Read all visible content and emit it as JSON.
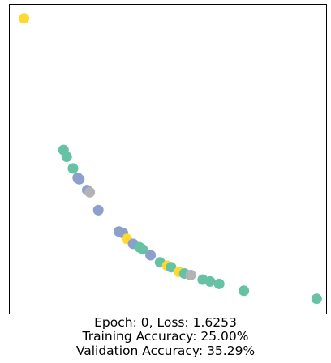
{
  "chart_data": {
    "type": "scatter",
    "title": "",
    "xlabel": "",
    "ylabel": "",
    "xlim": [
      0,
      100
    ],
    "ylim": [
      0,
      100
    ],
    "axis_ticks": false,
    "grid": false,
    "class_colors": {
      "0": "#66c2a5",
      "1": "#8da0cb",
      "2": "#ffd92f",
      "3": "#b3b3b3"
    },
    "points": [
      {
        "x": 4.5,
        "y": 95.6,
        "cls": 2
      },
      {
        "x": 17.0,
        "y": 53.0,
        "cls": 0
      },
      {
        "x": 18.0,
        "y": 50.8,
        "cls": 0
      },
      {
        "x": 20.0,
        "y": 47.0,
        "cls": 0
      },
      {
        "x": 21.5,
        "y": 44.0,
        "cls": 1
      },
      {
        "x": 22.0,
        "y": 43.5,
        "cls": 1
      },
      {
        "x": 24.5,
        "y": 40.0,
        "cls": 1
      },
      {
        "x": 25.3,
        "y": 39.3,
        "cls": 3
      },
      {
        "x": 28.0,
        "y": 33.5,
        "cls": 1
      },
      {
        "x": 34.5,
        "y": 26.6,
        "cls": 1
      },
      {
        "x": 35.8,
        "y": 26.1,
        "cls": 1
      },
      {
        "x": 37.0,
        "y": 24.2,
        "cls": 2
      },
      {
        "x": 39.0,
        "y": 22.6,
        "cls": 1
      },
      {
        "x": 41.0,
        "y": 21.5,
        "cls": 0
      },
      {
        "x": 42.0,
        "y": 20.8,
        "cls": 0
      },
      {
        "x": 44.5,
        "y": 18.9,
        "cls": 1
      },
      {
        "x": 47.5,
        "y": 16.6,
        "cls": 0
      },
      {
        "x": 49.8,
        "y": 15.5,
        "cls": 2
      },
      {
        "x": 51.0,
        "y": 15.0,
        "cls": 0
      },
      {
        "x": 53.5,
        "y": 13.5,
        "cls": 2
      },
      {
        "x": 55.2,
        "y": 13.0,
        "cls": 0
      },
      {
        "x": 57.2,
        "y": 12.5,
        "cls": 3
      },
      {
        "x": 61.0,
        "y": 11.0,
        "cls": 0
      },
      {
        "x": 63.3,
        "y": 10.4,
        "cls": 0
      },
      {
        "x": 66.2,
        "y": 9.6,
        "cls": 0
      },
      {
        "x": 74.0,
        "y": 7.4,
        "cls": 0
      },
      {
        "x": 97.0,
        "y": 4.8,
        "cls": 0
      }
    ]
  },
  "captions": {
    "epoch_loss": "Epoch: 0, Loss: 1.6253",
    "training_accuracy": "Training Accuracy: 25.00%",
    "validation_accuracy": "Validation Accuracy: 35.29%"
  }
}
